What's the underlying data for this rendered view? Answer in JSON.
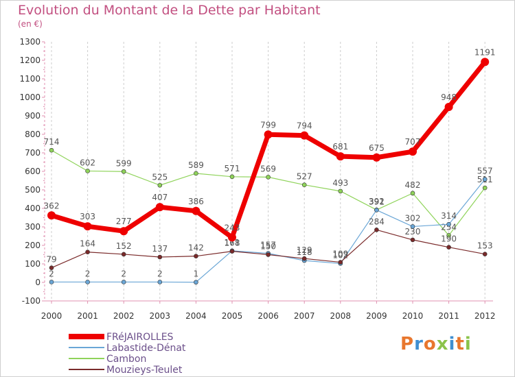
{
  "title": "Evolution du Montant de la Dette par Habitant",
  "subtitle": "(en €)",
  "logo": {
    "text": "Proxiti",
    "colors": [
      "#e8772e",
      "#3f8fd1",
      "#e8772e",
      "#8bc34a",
      "#3f8fd1",
      "#e8772e",
      "#8bc34a"
    ]
  },
  "chart_data": {
    "type": "line",
    "x": [
      2000,
      2001,
      2002,
      2003,
      2004,
      2005,
      2006,
      2007,
      2008,
      2009,
      2010,
      2011,
      2012
    ],
    "ylim": [
      -100,
      1300
    ],
    "yticks": [
      -100,
      0,
      100,
      200,
      300,
      400,
      500,
      600,
      700,
      800,
      900,
      1000,
      1100,
      1200,
      1300
    ],
    "grid": "vertical dashed",
    "legend": "bottom-left",
    "series": [
      {
        "name": "Cambon",
        "color": "#8fd35a",
        "width": 1.2,
        "r": 3,
        "values": [
          714,
          602,
          599,
          525,
          589,
          571,
          569,
          527,
          493,
          392,
          482,
          254,
          511
        ],
        "labels": [
          "714",
          "602",
          "599",
          "525",
          "589",
          "571",
          "569",
          "527",
          "493",
          "392",
          "482",
          "254",
          "511"
        ]
      },
      {
        "name": "Labastide-Dénat",
        "color": "#6aa6d6",
        "width": 1.2,
        "r": 3,
        "values": [
          2,
          2,
          2,
          2,
          1,
          171,
          157,
          118,
          102,
          391,
          302,
          314,
          557
        ],
        "labels": [
          "2",
          "2",
          "2",
          "2",
          "1",
          "171",
          "157",
          "118",
          "102",
          "391",
          "302",
          "314",
          "557"
        ]
      },
      {
        "name": "Mouzieys-Teulet",
        "color": "#7a2a2a",
        "width": 1.2,
        "r": 3,
        "values": [
          79,
          164,
          152,
          137,
          142,
          168,
          150,
          129,
          109,
          284,
          230,
          190,
          153
        ],
        "labels": [
          "79",
          "164",
          "152",
          "137",
          "142",
          "168",
          "150",
          "129",
          "109",
          "284",
          "230",
          "190",
          "153"
        ]
      },
      {
        "name": "FRéJAIROLLES",
        "color": "#ee0000",
        "width": 7,
        "r": 6,
        "values": [
          362,
          303,
          277,
          407,
          386,
          243,
          799,
          794,
          681,
          675,
          707,
          948,
          1191
        ],
        "labels": [
          "362",
          "303",
          "277",
          "407",
          "386",
          "243",
          "799",
          "794",
          "681",
          "675",
          "707",
          "948",
          "1191"
        ]
      }
    ],
    "legend_entries": [
      {
        "name": "FRéJAIROLLES",
        "color": "#ee0000"
      },
      {
        "name": "Labastide-Dénat",
        "color": "#6aa6d6"
      },
      {
        "name": "Cambon",
        "color": "#8fd35a"
      },
      {
        "name": "Mouzieys-Teulet",
        "color": "#7a2a2a"
      }
    ]
  }
}
